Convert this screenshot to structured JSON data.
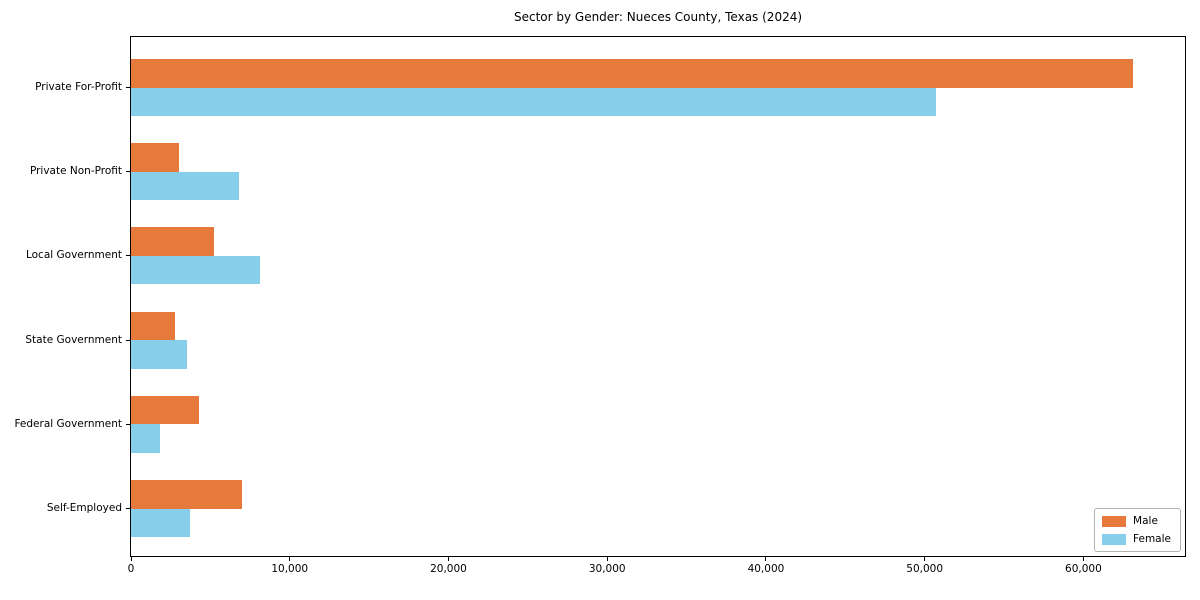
{
  "figure": {
    "background": "#ffffff",
    "border_color": "#000000"
  },
  "chart_data": {
    "type": "bar",
    "orientation": "horizontal",
    "title": "Sector by Gender: Nueces County, Texas (2024)",
    "xlabel": "",
    "ylabel": "",
    "grid": false,
    "categories": [
      "Private For-Profit",
      "Private Non-Profit",
      "Local Government",
      "State Government",
      "Federal Government",
      "Self-Employed"
    ],
    "series": [
      {
        "name": "Male",
        "color": "#e8793d",
        "values": [
          63100,
          3000,
          5200,
          2800,
          4300,
          7000
        ]
      },
      {
        "name": "Female",
        "color": "#87ceeb",
        "values": [
          50700,
          6800,
          8100,
          3500,
          1800,
          3700
        ]
      }
    ],
    "xlim": [
      0,
      66400
    ],
    "xticks": {
      "values": [
        0,
        10000,
        20000,
        30000,
        40000,
        50000,
        60000
      ],
      "labels": [
        "0",
        "10,000",
        "20,000",
        "30,000",
        "40,000",
        "50,000",
        "60,000"
      ]
    },
    "legend": {
      "position": "lower right",
      "entries": [
        "Male",
        "Female"
      ]
    }
  }
}
